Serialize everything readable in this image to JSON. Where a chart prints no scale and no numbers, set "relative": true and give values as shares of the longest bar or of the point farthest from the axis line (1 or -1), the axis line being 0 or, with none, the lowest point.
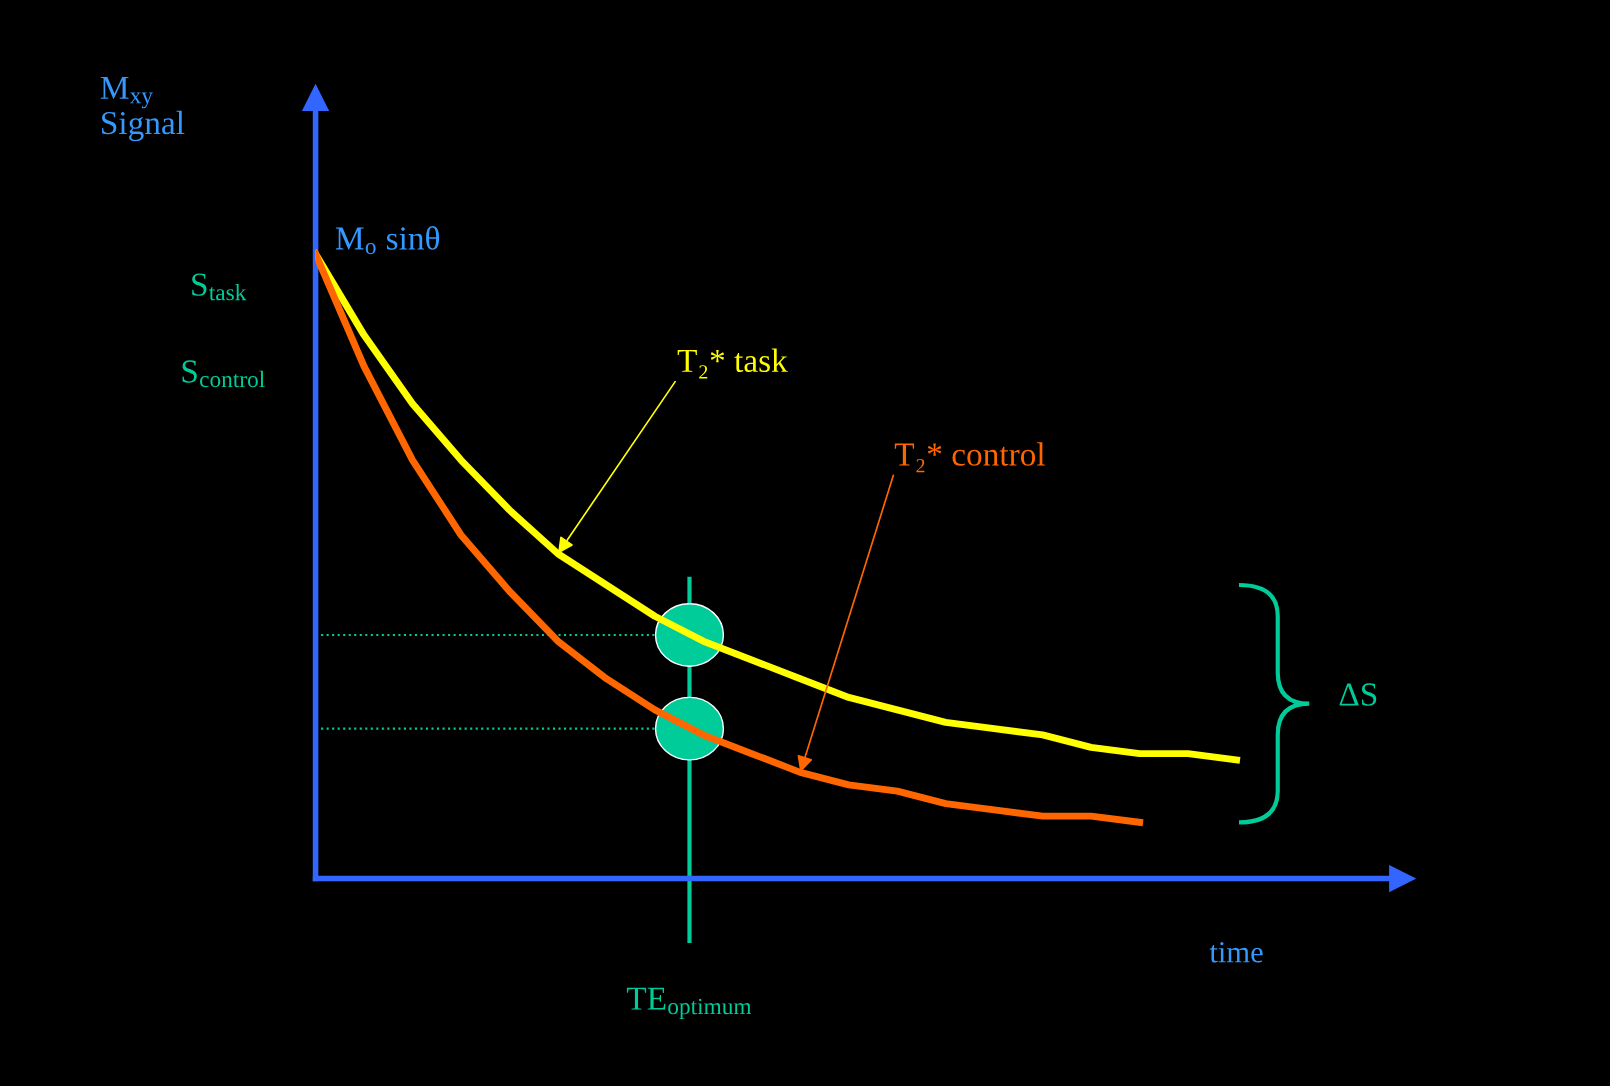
{
  "chart_data": {
    "type": "line",
    "relative": true,
    "ylabel": "M$_{xy}$\nSignal",
    "xlabel": "time",
    "categories": [
      null,
      null,
      null,
      null,
      null,
      null,
      null,
      null,
      null,
      null,
      null,
      null,
      null,
      null,
      null,
      null,
      null,
      null,
      null,
      null
    ],
    "series": [
      {
        "name": "T₂* task",
        "color": "#ffff00",
        "values": [
          1.0,
          0.87,
          0.76,
          0.67,
          0.59,
          0.52,
          0.47,
          0.42,
          0.38,
          0.35,
          0.32,
          0.29,
          0.27,
          0.25,
          0.24,
          0.23,
          0.21,
          0.2,
          0.2,
          0.19
        ]
      },
      {
        "name": "T₂* control",
        "color": "#ff6600",
        "values": [
          1.0,
          0.82,
          0.67,
          0.55,
          0.46,
          0.38,
          0.32,
          0.27,
          0.23,
          0.2,
          0.17,
          0.15,
          0.14,
          0.12,
          0.11,
          0.1,
          0.1,
          0.09,
          null,
          null
        ]
      }
    ],
    "ref_lines": [
      {
        "axis": "y",
        "value": 0.39,
        "label": null,
        "color": "#00cc99",
        "line_style": "dotted"
      },
      {
        "axis": "y",
        "value": 0.24,
        "label": null,
        "color": "#00cc99",
        "line_style": "dotted"
      }
    ],
    "annotations": [
      "M$_{o}$ sinθ",
      "S$_{task}$",
      "S$_{control}$",
      "ΔS",
      "TE$_{optimum}$"
    ],
    "legend": false,
    "grid": false,
    "marker": "none",
    "line_style": "solid"
  }
}
